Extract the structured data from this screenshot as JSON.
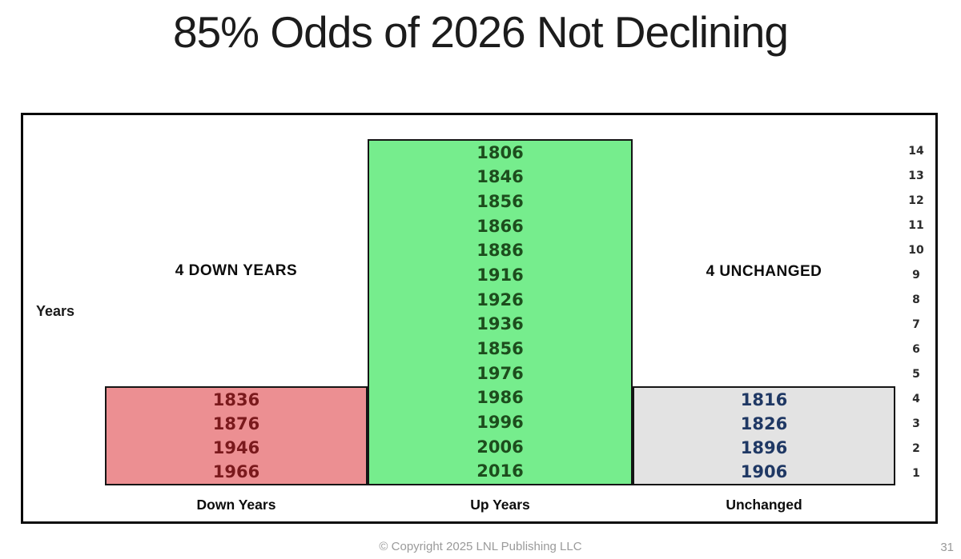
{
  "title": "85% Odds of 2026 Not Declining",
  "labels": {
    "years_axis": "Years",
    "annotation_down": "4 DOWN YEARS",
    "annotation_unchanged": "4 UNCHANGED"
  },
  "footer": {
    "copyright": "© Copyright 2025 LNL Publishing LLC",
    "page_number": "31"
  },
  "chart_data": {
    "type": "bar",
    "title": "85% Odds of 2026 Not Declining",
    "xlabel": "",
    "ylabel": "Years",
    "ylim": [
      0,
      14
    ],
    "grid": false,
    "legend": "none",
    "right_axis_ticks": [
      14,
      13,
      12,
      11,
      10,
      9,
      8,
      7,
      6,
      5,
      4,
      3,
      2,
      1
    ],
    "categories": [
      "Down Years",
      "Up Years",
      "Unchanged"
    ],
    "series": [
      {
        "name": "Down Years",
        "value": 4,
        "bar_color": "#ec8f92",
        "label_color": "#7a191c",
        "years_top_to_bottom": [
          "1836",
          "1876",
          "1946",
          "1966"
        ]
      },
      {
        "name": "Up Years",
        "value": 14,
        "bar_color": "#76ed8d",
        "label_color": "#1d4d1d",
        "years_top_to_bottom": [
          "1806",
          "1846",
          "1856",
          "1866",
          "1886",
          "1916",
          "1926",
          "1936",
          "1856",
          "1976",
          "1986",
          "1996",
          "2006",
          "2016"
        ]
      },
      {
        "name": "Unchanged",
        "value": 4,
        "bar_color": "#e3e3e3",
        "label_color": "#1f3864",
        "years_top_to_bottom": [
          "1816",
          "1826",
          "1896",
          "1906"
        ]
      }
    ],
    "annotations": [
      {
        "text": "4 DOWN YEARS",
        "near_series": "Down Years"
      },
      {
        "text": "4 UNCHANGED",
        "near_series": "Unchanged"
      }
    ]
  }
}
